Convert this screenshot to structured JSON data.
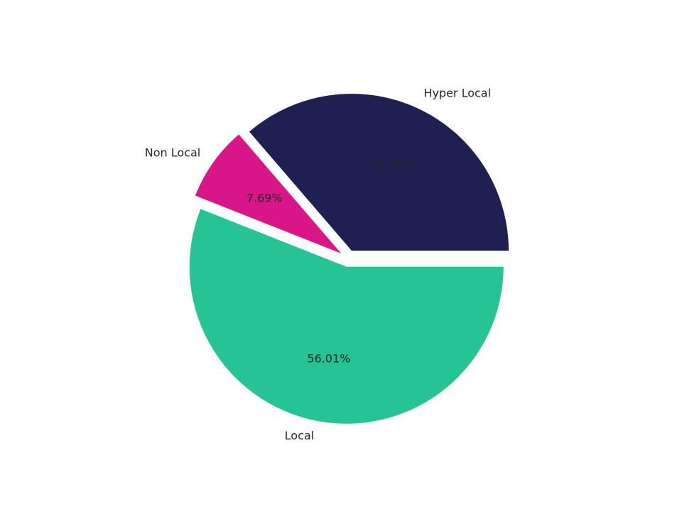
{
  "chart_data": {
    "type": "pie",
    "categories": [
      "Hyper Local",
      "Non Local",
      "Local"
    ],
    "values": [
      36.3,
      7.69,
      56.01
    ],
    "value_labels": [
      "36.30%",
      "7.69%",
      "56.01%"
    ],
    "colors": [
      "#1f1f54",
      "#d8168a",
      "#25c492"
    ]
  }
}
